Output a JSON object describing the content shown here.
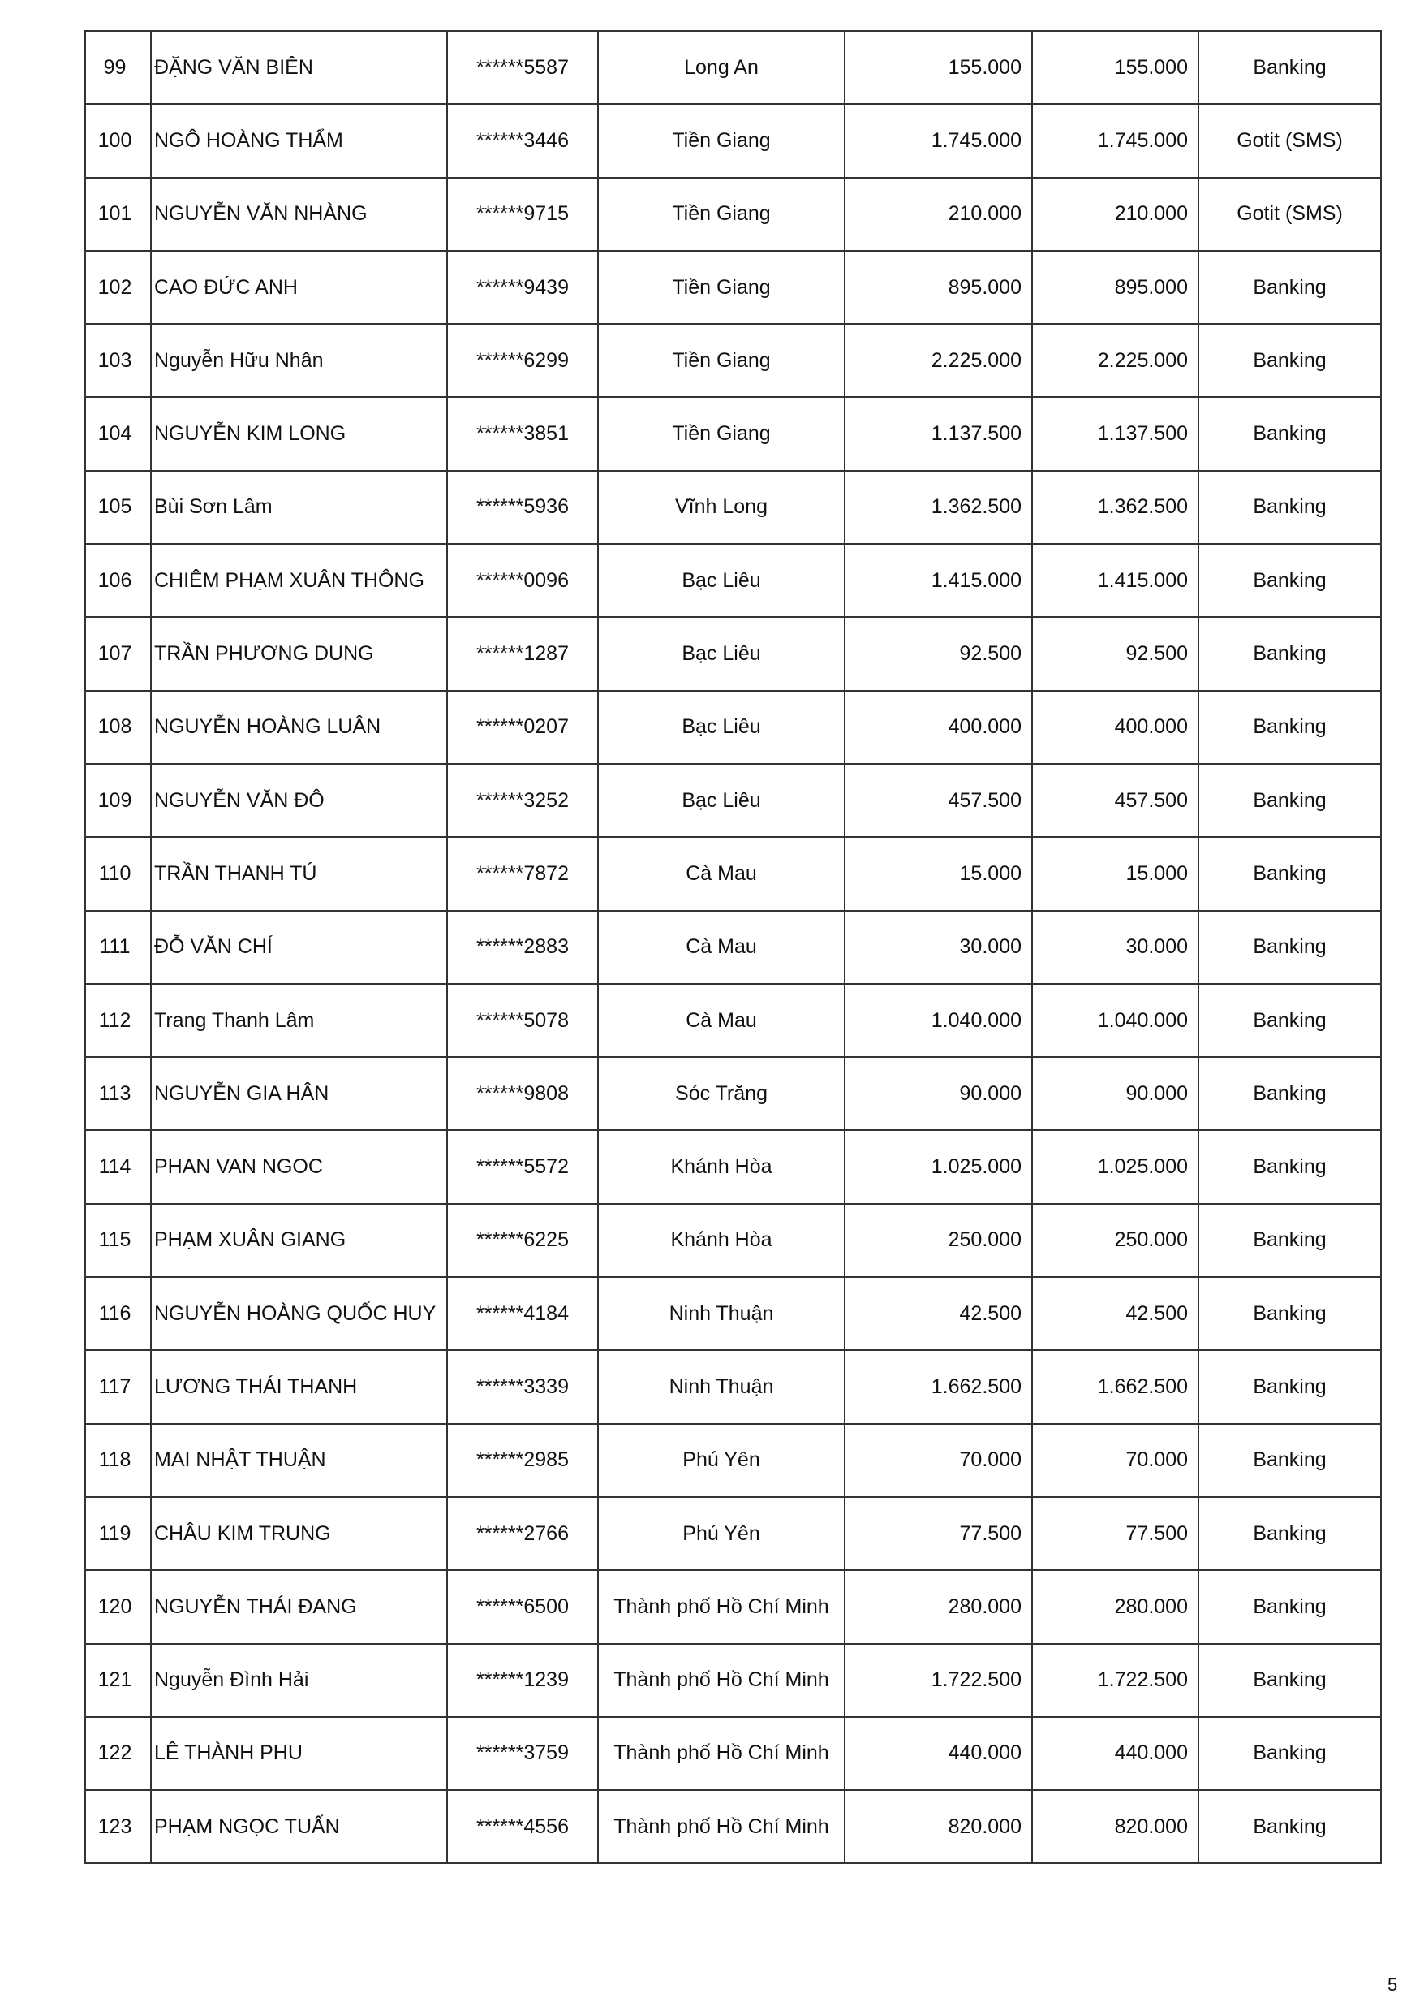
{
  "rows": [
    [
      "99",
      "ĐẶNG VĂN BIÊN",
      "******5587",
      "Long An",
      "155.000",
      "155.000",
      "Banking"
    ],
    [
      "100",
      "NGÔ HOÀNG THẨM",
      "******3446",
      "Tiền Giang",
      "1.745.000",
      "1.745.000",
      "Gotit (SMS)"
    ],
    [
      "101",
      "NGUYỄN VĂN NHÀNG",
      "******9715",
      "Tiền Giang",
      "210.000",
      "210.000",
      "Gotit (SMS)"
    ],
    [
      "102",
      "CAO ĐỨC ANH",
      "******9439",
      "Tiền Giang",
      "895.000",
      "895.000",
      "Banking"
    ],
    [
      "103",
      "Nguyễn Hữu Nhân",
      "******6299",
      "Tiền Giang",
      "2.225.000",
      "2.225.000",
      "Banking"
    ],
    [
      "104",
      "NGUYỄN KIM LONG",
      "******3851",
      "Tiền Giang",
      "1.137.500",
      "1.137.500",
      "Banking"
    ],
    [
      "105",
      "Bùi Sơn Lâm",
      "******5936",
      "Vĩnh Long",
      "1.362.500",
      "1.362.500",
      "Banking"
    ],
    [
      "106",
      "CHIÊM PHẠM XUÂN THÔNG",
      "******0096",
      "Bạc Liêu",
      "1.415.000",
      "1.415.000",
      "Banking"
    ],
    [
      "107",
      "TRẦN PHƯƠNG DUNG",
      "******1287",
      "Bạc Liêu",
      "92.500",
      "92.500",
      "Banking"
    ],
    [
      "108",
      "NGUYỄN HOÀNG LUÂN",
      "******0207",
      "Bạc Liêu",
      "400.000",
      "400.000",
      "Banking"
    ],
    [
      "109",
      "NGUYỄN VĂN ĐÔ",
      "******3252",
      "Bạc Liêu",
      "457.500",
      "457.500",
      "Banking"
    ],
    [
      "110",
      "TRẦN THANH TÚ",
      "******7872",
      "Cà Mau",
      "15.000",
      "15.000",
      "Banking"
    ],
    [
      "111",
      "ĐỖ VĂN CHÍ",
      "******2883",
      "Cà Mau",
      "30.000",
      "30.000",
      "Banking"
    ],
    [
      "112",
      "Trang Thanh Lâm",
      "******5078",
      "Cà Mau",
      "1.040.000",
      "1.040.000",
      "Banking"
    ],
    [
      "113",
      "NGUYỄN GIA HÂN",
      "******9808",
      "Sóc Trăng",
      "90.000",
      "90.000",
      "Banking"
    ],
    [
      "114",
      "PHAN VAN NGOC",
      "******5572",
      "Khánh Hòa",
      "1.025.000",
      "1.025.000",
      "Banking"
    ],
    [
      "115",
      "PHẠM XUÂN GIANG",
      "******6225",
      "Khánh Hòa",
      "250.000",
      "250.000",
      "Banking"
    ],
    [
      "116",
      "NGUYỄN HOÀNG QUỐC HUY",
      "******4184",
      "Ninh Thuận",
      "42.500",
      "42.500",
      "Banking"
    ],
    [
      "117",
      "LƯƠNG THÁI THANH",
      "******3339",
      "Ninh Thuận",
      "1.662.500",
      "1.662.500",
      "Banking"
    ],
    [
      "118",
      "MAI NHẬT THUẬN",
      "******2985",
      "Phú Yên",
      "70.000",
      "70.000",
      "Banking"
    ],
    [
      "119",
      "CHÂU KIM TRUNG",
      "******2766",
      "Phú Yên",
      "77.500",
      "77.500",
      "Banking"
    ],
    [
      "120",
      "NGUYỄN THÁI ĐANG",
      "******6500",
      "Thành phố Hồ Chí Minh",
      "280.000",
      "280.000",
      "Banking"
    ],
    [
      "121",
      "Nguyễn Đình Hải",
      "******1239",
      "Thành phố Hồ Chí Minh",
      "1.722.500",
      "1.722.500",
      "Banking"
    ],
    [
      "122",
      "LÊ THÀNH PHU",
      "******3759",
      "Thành phố Hồ Chí Minh",
      "440.000",
      "440.000",
      "Banking"
    ],
    [
      "123",
      "PHẠM NGỌC TUẤN",
      "******4556",
      "Thành phố Hồ Chí Minh",
      "820.000",
      "820.000",
      "Banking"
    ]
  ],
  "page_number": "5"
}
